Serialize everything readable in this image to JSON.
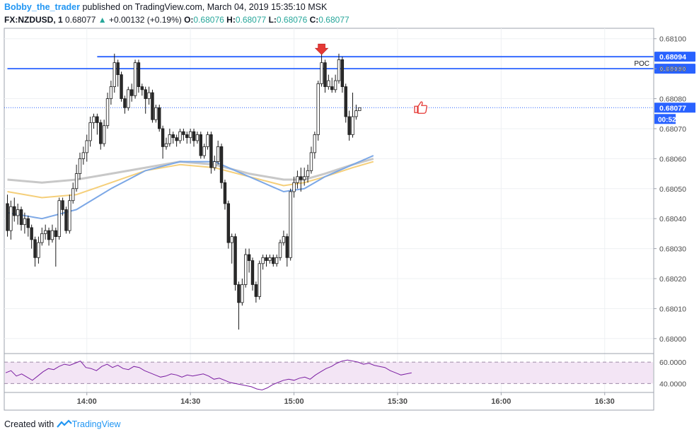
{
  "header": {
    "author": "Bobby_the_trader",
    "published_text": "published on TradingView.com, March 04, 2019 15:35:10 MSK",
    "symbol": "FX:NZDUSD, 1",
    "last": "0.68077",
    "change_arrow": "▲",
    "change": "+0.00132 (+0.19%)",
    "o_label": "O:",
    "o": "0.68076",
    "h_label": "H:",
    "h": "0.68077",
    "l_label": "L:",
    "l": "0.68076",
    "c_label": "C:",
    "c": "0.68077"
  },
  "footer": {
    "created_with": "Created with",
    "brand": "TradingView"
  },
  "colors": {
    "bull": "#ffffff",
    "bear": "#2a2a2a",
    "wick": "#1a1a1a",
    "hline": "#2962ff",
    "ema_blue": "#7ba7e6",
    "ema_orange": "#f5cf7a",
    "sma_gray": "#c8c8c8",
    "rsi_fill": "#f3e5f5",
    "rsi_line": "#7b1fa2",
    "badge": "#2962ff",
    "marker": "#e53935"
  },
  "chart_data": {
    "type": "candlestick",
    "symbol": "FX:NZDUSD",
    "interval": "1",
    "ylim": [
      0.67995,
      0.68103
    ],
    "y_ticks": [
      "0.68100",
      "0.68090",
      "0.68080",
      "0.68070",
      "0.68060",
      "0.68050",
      "0.68040",
      "0.68030",
      "0.68020",
      "0.68010",
      "0.68000"
    ],
    "x_ticks": [
      "14:00",
      "14:30",
      "15:00",
      "15:30",
      "16:00",
      "16:30"
    ],
    "x_tick_minutes": [
      840,
      870,
      900,
      930,
      960,
      990
    ],
    "start_minute": 817,
    "horizontal_lines": [
      {
        "value": 0.68094,
        "label": "0.68094",
        "from_minute": 843
      },
      {
        "value": 0.6809,
        "label": "0.68090",
        "tag": "POC",
        "from_minute": 817
      }
    ],
    "current_price_label": "0.68077",
    "countdown_label": "00:52",
    "candles": [
      [
        0.68045,
        0.68036,
        0.68048,
        0.68034
      ],
      [
        0.68036,
        0.68044,
        0.68046,
        0.68033
      ],
      [
        0.68044,
        0.68041,
        0.68047,
        0.68039
      ],
      [
        0.68041,
        0.68043,
        0.68045,
        0.68038
      ],
      [
        0.68043,
        0.68038,
        0.68044,
        0.68036
      ],
      [
        0.68038,
        0.6804,
        0.68042,
        0.68035
      ],
      [
        0.6804,
        0.68037,
        0.68041,
        0.68034
      ],
      [
        0.68037,
        0.68033,
        0.68038,
        0.6803
      ],
      [
        0.68033,
        0.68027,
        0.68034,
        0.68024
      ],
      [
        0.68027,
        0.68032,
        0.68034,
        0.68025
      ],
      [
        0.68032,
        0.68035,
        0.68037,
        0.68031
      ],
      [
        0.68035,
        0.68036,
        0.68038,
        0.68033
      ],
      [
        0.68036,
        0.68033,
        0.68037,
        0.68031
      ],
      [
        0.68033,
        0.68036,
        0.68038,
        0.68032
      ],
      [
        0.68036,
        0.68034,
        0.68037,
        0.68024
      ],
      [
        0.68034,
        0.68046,
        0.68047,
        0.68033
      ],
      [
        0.68046,
        0.68043,
        0.68047,
        0.68041
      ],
      [
        0.68043,
        0.68036,
        0.68044,
        0.68035
      ],
      [
        0.68036,
        0.68046,
        0.68048,
        0.68035
      ],
      [
        0.68046,
        0.6805,
        0.68052,
        0.68045
      ],
      [
        0.6805,
        0.68055,
        0.68058,
        0.68049
      ],
      [
        0.68055,
        0.6806,
        0.68062,
        0.68053
      ],
      [
        0.6806,
        0.68062,
        0.68064,
        0.68058
      ],
      [
        0.68062,
        0.68066,
        0.68068,
        0.68059
      ],
      [
        0.68066,
        0.68072,
        0.68074,
        0.68064
      ],
      [
        0.68072,
        0.68074,
        0.68075,
        0.6807
      ],
      [
        0.68074,
        0.68072,
        0.68075,
        0.68068
      ],
      [
        0.68072,
        0.68065,
        0.68073,
        0.68063
      ],
      [
        0.68065,
        0.68071,
        0.68073,
        0.68064
      ],
      [
        0.68071,
        0.6808,
        0.68082,
        0.6807
      ],
      [
        0.6808,
        0.68084,
        0.68086,
        0.68078
      ],
      [
        0.68084,
        0.68092,
        0.68095,
        0.68082
      ],
      [
        0.68092,
        0.68088,
        0.68093,
        0.68084
      ],
      [
        0.68088,
        0.6808,
        0.68089,
        0.68079
      ],
      [
        0.6808,
        0.68077,
        0.68081,
        0.68075
      ],
      [
        0.68077,
        0.68083,
        0.68084,
        0.68076
      ],
      [
        0.68083,
        0.68081,
        0.68085,
        0.68079
      ],
      [
        0.68081,
        0.68092,
        0.68093,
        0.6808
      ],
      [
        0.68092,
        0.68084,
        0.68093,
        0.68082
      ],
      [
        0.68084,
        0.68083,
        0.68085,
        0.68081
      ],
      [
        0.68083,
        0.6808,
        0.68084,
        0.68075
      ],
      [
        0.6808,
        0.68082,
        0.68084,
        0.68078
      ],
      [
        0.68082,
        0.68073,
        0.68083,
        0.68072
      ],
      [
        0.68073,
        0.68077,
        0.68078,
        0.68072
      ],
      [
        0.68077,
        0.6807,
        0.68078,
        0.68069
      ],
      [
        0.6807,
        0.68064,
        0.68071,
        0.6806
      ],
      [
        0.68064,
        0.68065,
        0.68067,
        0.68063
      ],
      [
        0.68065,
        0.68068,
        0.6807,
        0.68064
      ],
      [
        0.68068,
        0.68067,
        0.68069,
        0.68065
      ],
      [
        0.68067,
        0.68066,
        0.68068,
        0.68064
      ],
      [
        0.68066,
        0.68069,
        0.6807,
        0.68065
      ],
      [
        0.68069,
        0.68068,
        0.6807,
        0.68066
      ],
      [
        0.68068,
        0.68067,
        0.68069,
        0.68065
      ],
      [
        0.68067,
        0.68069,
        0.6807,
        0.68065
      ],
      [
        0.68069,
        0.68066,
        0.6807,
        0.68064
      ],
      [
        0.68066,
        0.68068,
        0.68069,
        0.68065
      ],
      [
        0.68068,
        0.68061,
        0.68069,
        0.6806
      ],
      [
        0.68061,
        0.68064,
        0.68065,
        0.6806
      ],
      [
        0.68064,
        0.68068,
        0.68069,
        0.68063
      ],
      [
        0.68068,
        0.68057,
        0.68069,
        0.68055
      ],
      [
        0.68057,
        0.68059,
        0.68061,
        0.68056
      ],
      [
        0.68059,
        0.68064,
        0.68066,
        0.68058
      ],
      [
        0.68064,
        0.68052,
        0.68065,
        0.6805
      ],
      [
        0.68052,
        0.68045,
        0.68053,
        0.68043
      ],
      [
        0.68045,
        0.68032,
        0.68046,
        0.6803
      ],
      [
        0.68032,
        0.68034,
        0.68035,
        0.68025
      ],
      [
        0.68034,
        0.68018,
        0.68035,
        0.68016
      ],
      [
        0.68018,
        0.68012,
        0.68019,
        0.68003
      ],
      [
        0.68012,
        0.68018,
        0.6802,
        0.68011
      ],
      [
        0.68018,
        0.68028,
        0.6803,
        0.68017
      ],
      [
        0.68028,
        0.68026,
        0.6803,
        0.68022
      ],
      [
        0.68026,
        0.68018,
        0.68027,
        0.68016
      ],
      [
        0.68018,
        0.68014,
        0.68019,
        0.68012
      ],
      [
        0.68014,
        0.68025,
        0.68026,
        0.68013
      ],
      [
        0.68025,
        0.68027,
        0.68028,
        0.68023
      ],
      [
        0.68027,
        0.68026,
        0.68028,
        0.68024
      ],
      [
        0.68026,
        0.68027,
        0.68028,
        0.68025
      ],
      [
        0.68027,
        0.68025,
        0.68028,
        0.68024
      ],
      [
        0.68025,
        0.68027,
        0.68028,
        0.68024
      ],
      [
        0.68027,
        0.68032,
        0.68033,
        0.68026
      ],
      [
        0.68032,
        0.68034,
        0.68036,
        0.68031
      ],
      [
        0.68034,
        0.68027,
        0.68035,
        0.68024
      ],
      [
        0.68027,
        0.68049,
        0.6805,
        0.68026
      ],
      [
        0.68049,
        0.68052,
        0.68054,
        0.68047
      ],
      [
        0.68052,
        0.68054,
        0.68056,
        0.6805
      ],
      [
        0.68054,
        0.68053,
        0.68057,
        0.68049
      ],
      [
        0.68053,
        0.68054,
        0.68057,
        0.68051
      ],
      [
        0.68054,
        0.68056,
        0.68058,
        0.68052
      ],
      [
        0.68056,
        0.68062,
        0.68064,
        0.68055
      ],
      [
        0.68062,
        0.68068,
        0.68069,
        0.6806
      ],
      [
        0.68068,
        0.68085,
        0.68086,
        0.68066
      ],
      [
        0.68085,
        0.68092,
        0.68096,
        0.68084
      ],
      [
        0.68092,
        0.68084,
        0.68093,
        0.68082
      ],
      [
        0.68084,
        0.68086,
        0.68088,
        0.68083
      ],
      [
        0.68084,
        0.68083,
        0.68087,
        0.68082
      ],
      [
        0.68083,
        0.68086,
        0.68088,
        0.68082
      ],
      [
        0.68086,
        0.68093,
        0.68095,
        0.68085
      ],
      [
        0.68093,
        0.68084,
        0.68094,
        0.68082
      ],
      [
        0.68084,
        0.68074,
        0.68085,
        0.68072
      ],
      [
        0.68074,
        0.68068,
        0.68076,
        0.68066
      ],
      [
        0.68068,
        0.68074,
        0.68082,
        0.68067
      ],
      [
        0.68074,
        0.68076,
        0.68078,
        0.68073
      ],
      [
        0.68076,
        0.68077,
        0.68077,
        0.68076
      ]
    ],
    "indicators": {
      "ma_blue": [
        [
          0,
          0.68042
        ],
        [
          10,
          0.6804
        ],
        [
          20,
          0.68043
        ],
        [
          30,
          0.6805
        ],
        [
          40,
          0.68056
        ],
        [
          50,
          0.68059
        ],
        [
          60,
          0.68059
        ],
        [
          70,
          0.68054
        ],
        [
          80,
          0.68049
        ],
        [
          86,
          0.6805
        ],
        [
          92,
          0.68054
        ],
        [
          100,
          0.68058
        ],
        [
          106,
          0.68061
        ]
      ],
      "ma_orange": [
        [
          0,
          0.68049
        ],
        [
          10,
          0.68047
        ],
        [
          20,
          0.68048
        ],
        [
          30,
          0.68052
        ],
        [
          40,
          0.68056
        ],
        [
          50,
          0.68058
        ],
        [
          60,
          0.68057
        ],
        [
          70,
          0.68054
        ],
        [
          80,
          0.68051
        ],
        [
          86,
          0.68052
        ],
        [
          92,
          0.68054
        ],
        [
          100,
          0.68057
        ],
        [
          106,
          0.68059
        ]
      ],
      "ma_gray": [
        [
          0,
          0.68053
        ],
        [
          10,
          0.68052
        ],
        [
          20,
          0.68053
        ],
        [
          30,
          0.68055
        ],
        [
          40,
          0.68057
        ],
        [
          50,
          0.68059
        ],
        [
          60,
          0.68058
        ],
        [
          70,
          0.68055
        ],
        [
          80,
          0.68053
        ],
        [
          86,
          0.68053
        ],
        [
          92,
          0.68055
        ],
        [
          100,
          0.68058
        ],
        [
          106,
          0.6806
        ]
      ]
    },
    "rsi": {
      "levels": [
        "60.0000",
        "40.0000"
      ],
      "ylim": [
        33,
        66
      ],
      "values": [
        50,
        52,
        47,
        49,
        46,
        43,
        47,
        51,
        54,
        53,
        56,
        58,
        57,
        59,
        61,
        55,
        54,
        52,
        56,
        58,
        55,
        57,
        54,
        53,
        56,
        55,
        52,
        50,
        48,
        46,
        47,
        49,
        48,
        46,
        48,
        47,
        48,
        49,
        47,
        44,
        45,
        43,
        41,
        40,
        39,
        38,
        37,
        35,
        34,
        36,
        39,
        41,
        43,
        44,
        43,
        45,
        46,
        44,
        48,
        51,
        54,
        56,
        59,
        61,
        62,
        61,
        60,
        58,
        59,
        57,
        56,
        55,
        52,
        50,
        48,
        49,
        50
      ]
    }
  }
}
